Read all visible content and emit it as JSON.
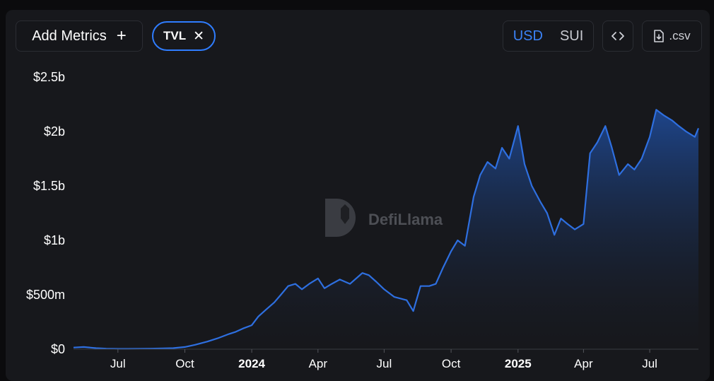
{
  "toolbar": {
    "add_metrics_label": "Add Metrics",
    "add_metrics_icon": "plus-icon",
    "metric_pill": {
      "label": "TVL",
      "remove_icon": "close-icon"
    },
    "currency_toggle": {
      "options": [
        "USD",
        "SUI"
      ],
      "selected": "USD"
    },
    "embed_icon": "code-brackets-icon",
    "csv_label": ".csv",
    "csv_icon": "file-download-icon"
  },
  "watermark": {
    "text": "DefiLlama",
    "icon": "llama-logo-icon"
  },
  "colors": {
    "accent": "#3b82f6",
    "line": "#2e6fe0",
    "background": "#17181c"
  },
  "chart_data": {
    "type": "area",
    "series": [
      {
        "x": [
          "2023-05-01",
          "2023-05-15",
          "2023-06-01",
          "2023-06-15",
          "2023-07-01",
          "2023-07-15",
          "2023-08-01",
          "2023-08-15",
          "2023-09-01",
          "2023-09-15",
          "2023-10-01",
          "2023-10-15",
          "2023-11-01",
          "2023-11-15",
          "2023-12-01",
          "2023-12-10",
          "2023-12-20",
          "2024-01-01",
          "2024-01-10",
          "2024-01-20",
          "2024-02-01",
          "2024-02-10",
          "2024-02-20",
          "2024-03-01",
          "2024-03-10",
          "2024-03-20",
          "2024-04-01",
          "2024-04-10",
          "2024-04-20",
          "2024-05-01",
          "2024-05-15",
          "2024-06-01",
          "2024-06-10",
          "2024-06-20",
          "2024-07-01",
          "2024-07-15",
          "2024-08-01",
          "2024-08-10",
          "2024-08-20",
          "2024-09-01",
          "2024-09-10",
          "2024-09-20",
          "2024-10-01",
          "2024-10-10",
          "2024-10-20",
          "2024-11-01",
          "2024-11-10",
          "2024-11-20",
          "2024-12-01",
          "2024-12-10",
          "2024-12-20",
          "2025-01-01",
          "2025-01-10",
          "2025-01-20",
          "2025-02-01",
          "2025-02-10",
          "2025-02-20",
          "2025-03-01",
          "2025-03-10",
          "2025-03-20",
          "2025-04-01",
          "2025-04-10",
          "2025-04-20",
          "2025-05-01",
          "2025-05-10",
          "2025-05-20",
          "2025-06-01",
          "2025-06-10",
          "2025-06-20",
          "2025-07-01",
          "2025-07-10",
          "2025-07-20",
          "2025-08-01",
          "2025-08-10",
          "2025-08-20",
          "2025-09-01",
          "2025-09-06"
        ],
        "values": [
          0.015,
          0.02,
          0.01,
          0.005,
          0.003,
          0.003,
          0.004,
          0.005,
          0.008,
          0.01,
          0.02,
          0.04,
          0.07,
          0.1,
          0.14,
          0.16,
          0.19,
          0.22,
          0.3,
          0.36,
          0.43,
          0.5,
          0.58,
          0.6,
          0.55,
          0.6,
          0.65,
          0.56,
          0.6,
          0.64,
          0.6,
          0.7,
          0.68,
          0.62,
          0.55,
          0.48,
          0.45,
          0.35,
          0.58,
          0.58,
          0.6,
          0.75,
          0.9,
          1.0,
          0.95,
          1.4,
          1.6,
          1.72,
          1.66,
          1.85,
          1.75,
          2.05,
          1.7,
          1.5,
          1.35,
          1.25,
          1.05,
          1.2,
          1.15,
          1.1,
          1.15,
          1.8,
          1.9,
          2.05,
          1.85,
          1.6,
          1.7,
          1.65,
          1.75,
          1.95,
          2.2,
          2.15,
          2.1,
          2.05,
          2.0,
          1.95,
          2.03
        ]
      }
    ],
    "x_ticks": [
      {
        "date": "2023-07-01",
        "label": "Jul",
        "bold": false
      },
      {
        "date": "2023-10-01",
        "label": "Oct",
        "bold": false
      },
      {
        "date": "2024-01-01",
        "label": "2024",
        "bold": true
      },
      {
        "date": "2024-04-01",
        "label": "Apr",
        "bold": false
      },
      {
        "date": "2024-07-01",
        "label": "Jul",
        "bold": false
      },
      {
        "date": "2024-10-01",
        "label": "Oct",
        "bold": false
      },
      {
        "date": "2025-01-01",
        "label": "2025",
        "bold": true
      },
      {
        "date": "2025-04-01",
        "label": "Apr",
        "bold": false
      },
      {
        "date": "2025-07-01",
        "label": "Jul",
        "bold": false
      }
    ],
    "y_ticks": [
      {
        "value": 0,
        "label": "$0"
      },
      {
        "value": 0.5,
        "label": "$500m"
      },
      {
        "value": 1,
        "label": "$1b"
      },
      {
        "value": 1.5,
        "label": "$1.5b"
      },
      {
        "value": 2,
        "label": "$2b"
      },
      {
        "value": 2.5,
        "label": "$2.5b"
      }
    ],
    "x_range": [
      "2023-05-01",
      "2025-09-06"
    ],
    "y_range": [
      0,
      2.5
    ],
    "grid": false,
    "legend": "none"
  }
}
